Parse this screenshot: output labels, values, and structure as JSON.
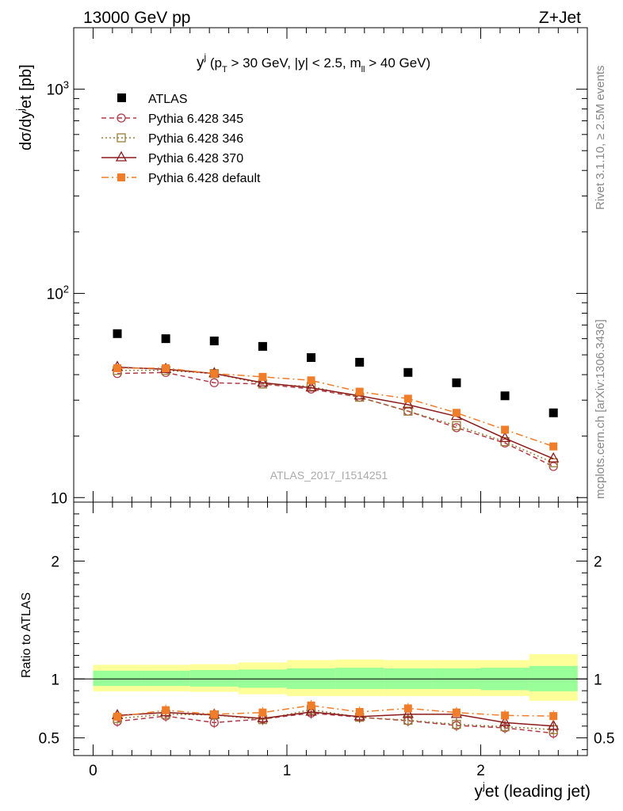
{
  "header": {
    "energy_label": "13000 GeV pp",
    "process_label": "Z+Jet"
  },
  "side_labels": {
    "rivet": "Rivet 3.1.10, ≥ 2.5M events",
    "mcplots": "mcplots.cern.ch [arXiv:1306.3436]"
  },
  "chart_data": {
    "type": "scatter",
    "title": "y^j (p_T > 30 GeV, |y| < 2.5, m_ll > 40 GeV)",
    "analysis_id": "ATLAS_2017_I1514251",
    "xlabel": "y^jet (leading jet)",
    "ylabel": "dσ/dy^jet [pb]",
    "ratio_ylabel": "Ratio to ATLAS",
    "xlim": [
      -0.1,
      2.55
    ],
    "ylim": [
      9.5,
      2000
    ],
    "yscale": "log",
    "ratio_ylim": [
      0.35,
      2.5
    ],
    "x_ticks": [
      "0",
      "1",
      "2"
    ],
    "y_ticks": [
      "10",
      "10²",
      "10³"
    ],
    "ratio_ticks": [
      "0.5",
      "1",
      "2"
    ],
    "x": [
      0.125,
      0.375,
      0.625,
      0.875,
      1.125,
      1.375,
      1.625,
      1.875,
      2.125,
      2.375
    ],
    "bin_edges": [
      0,
      0.25,
      0.5,
      0.75,
      1.0,
      1.25,
      1.5,
      1.75,
      2.0,
      2.25,
      2.5
    ],
    "legend_position": "top-left",
    "series": [
      {
        "name": "ATLAS",
        "style": "data",
        "color": "#000000",
        "values": [
          63.5,
          60,
          58.5,
          55,
          48.5,
          46,
          41,
          36.5,
          31.5,
          26
        ]
      },
      {
        "name": "Pythia 6.428 345",
        "style": "dashed",
        "marker": "circle",
        "color": "#b03a48",
        "values": [
          40.5,
          41,
          36.5,
          36,
          34,
          31,
          26.5,
          22,
          18.5,
          14.2
        ]
      },
      {
        "name": "Pythia 6.428 346",
        "style": "dotted",
        "marker": "square",
        "color": "#9a7d3a",
        "values": [
          42,
          42,
          40.5,
          36,
          35,
          31,
          26.5,
          22.5,
          18.8,
          14.8
        ]
      },
      {
        "name": "Pythia 6.428 370",
        "style": "solid",
        "marker": "triangle",
        "color": "#8b1a1a",
        "values": [
          43.5,
          42.5,
          40.5,
          36.5,
          34.5,
          31.5,
          28.5,
          25,
          19.5,
          15.5
        ]
      },
      {
        "name": "Pythia 6.428 default",
        "style": "dashdot",
        "marker": "filled-square",
        "color": "#f07d2a",
        "values": [
          43,
          43,
          40.5,
          39,
          37.5,
          33,
          30.5,
          26,
          21.5,
          17.8
        ]
      }
    ],
    "ratio_series": [
      {
        "name": "Pythia 6.428 345",
        "values": [
          0.64,
          0.685,
          0.63,
          0.66,
          0.71,
          0.675,
          0.645,
          0.605,
          0.585,
          0.54
        ]
      },
      {
        "name": "Pythia 6.428 346",
        "values": [
          0.665,
          0.7,
          0.695,
          0.655,
          0.74,
          0.675,
          0.65,
          0.615,
          0.595,
          0.57
        ]
      },
      {
        "name": "Pythia 6.428 370",
        "values": [
          0.69,
          0.715,
          0.695,
          0.665,
          0.72,
          0.68,
          0.7,
          0.7,
          0.63,
          0.6
        ]
      },
      {
        "name": "Pythia 6.428 default",
        "values": [
          0.68,
          0.735,
          0.7,
          0.715,
          0.775,
          0.72,
          0.75,
          0.715,
          0.69,
          0.685
        ]
      }
    ],
    "ratio_bands": {
      "inner": [
        [
          0.94,
          1.07
        ],
        [
          0.94,
          1.07
        ],
        [
          0.935,
          1.075
        ],
        [
          0.925,
          1.08
        ],
        [
          0.915,
          1.09
        ],
        [
          0.915,
          1.095
        ],
        [
          0.915,
          1.09
        ],
        [
          0.915,
          1.09
        ],
        [
          0.905,
          1.095
        ],
        [
          0.895,
          1.11
        ]
      ],
      "outer": [
        [
          0.895,
          1.12
        ],
        [
          0.895,
          1.12
        ],
        [
          0.89,
          1.125
        ],
        [
          0.87,
          1.14
        ],
        [
          0.855,
          1.16
        ],
        [
          0.855,
          1.165
        ],
        [
          0.855,
          1.16
        ],
        [
          0.855,
          1.16
        ],
        [
          0.855,
          1.16
        ],
        [
          0.815,
          1.21
        ]
      ]
    },
    "colors": {
      "inner_band": "#99ff99",
      "outer_band": "#ffff99"
    }
  }
}
